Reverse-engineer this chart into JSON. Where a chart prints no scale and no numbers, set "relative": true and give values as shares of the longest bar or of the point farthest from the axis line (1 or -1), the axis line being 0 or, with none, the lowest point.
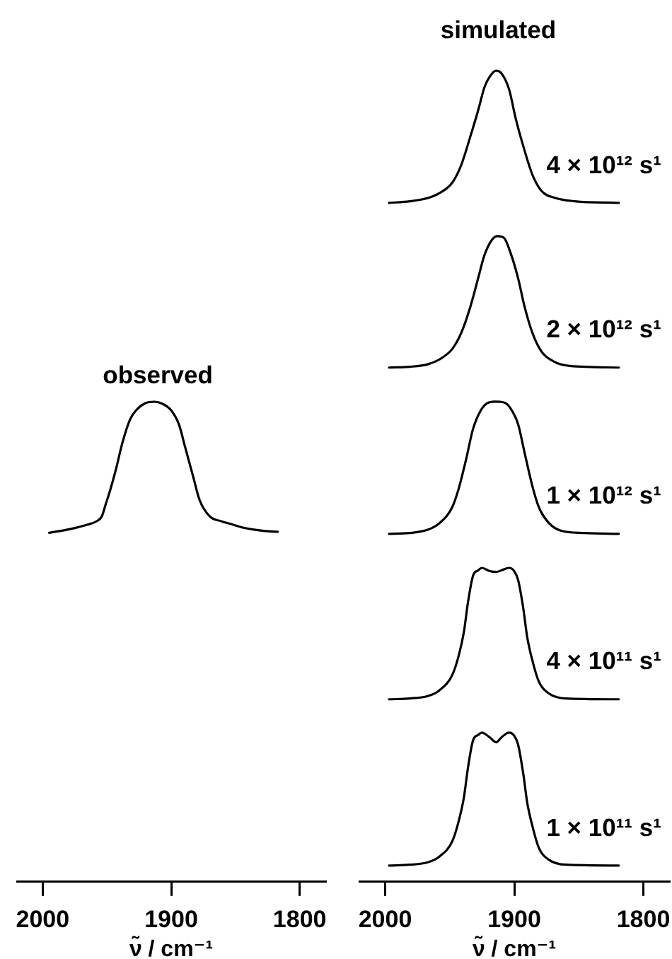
{
  "chart_data": [
    {
      "type": "line",
      "title": "observed",
      "xlabel": "ν̃ / cm⁻¹",
      "relative": true,
      "xlim": [
        2020,
        1780
      ],
      "xticks": [
        2000,
        1900,
        1800
      ],
      "x": [
        1995,
        1978,
        1965,
        1958,
        1954,
        1951,
        1947,
        1943,
        1938,
        1932,
        1927,
        1920,
        1913,
        1907,
        1900,
        1894,
        1889,
        1883,
        1878,
        1870,
        1861,
        1852,
        1843,
        1828,
        1817
      ],
      "series": [
        {
          "color": "#000000",
          "values": [
            0.727,
            0.735,
            0.744,
            0.751,
            0.761,
            0.786,
            0.82,
            0.859,
            0.914,
            0.963,
            0.983,
            0.997,
            1.0,
            0.996,
            0.982,
            0.953,
            0.904,
            0.845,
            0.796,
            0.761,
            0.751,
            0.744,
            0.737,
            0.731,
            0.729
          ]
        }
      ]
    },
    {
      "type": "line",
      "title": "simulated",
      "xlabel": "ν̃ / cm⁻¹",
      "relative": true,
      "xlim": [
        2020,
        1780
      ],
      "xticks": [
        2000,
        1900,
        1800
      ],
      "series": [
        {
          "name": "4 × 10¹² s¹",
          "color": "#000000",
          "x": [
            1997,
            1981,
            1967,
            1958,
            1948,
            1941,
            1934,
            1928,
            1923,
            1917,
            1914,
            1910,
            1904,
            1899,
            1893,
            1886,
            1879,
            1868,
            1853,
            1819
          ],
          "values": [
            0.837,
            0.839,
            0.843,
            0.849,
            0.862,
            0.884,
            0.919,
            0.951,
            0.98,
            0.997,
            1.0,
            0.997,
            0.977,
            0.942,
            0.907,
            0.872,
            0.852,
            0.843,
            0.839,
            0.837
          ]
        },
        {
          "name": "2 × 10¹² s¹",
          "color": "#000000",
          "x": [
            1997,
            1981,
            1967,
            1958,
            1948,
            1941,
            1934,
            1928,
            1923,
            1917,
            1913,
            1908,
            1903,
            1897,
            1892,
            1886,
            1879,
            1870,
            1857,
            1819
          ],
          "values": [
            0.634,
            0.635,
            0.638,
            0.644,
            0.657,
            0.677,
            0.709,
            0.744,
            0.773,
            0.792,
            0.796,
            0.794,
            0.776,
            0.744,
            0.709,
            0.677,
            0.654,
            0.642,
            0.636,
            0.634
          ]
        },
        {
          "name": "1 × 10¹² s¹",
          "color": "#000000",
          "x": [
            1997,
            1981,
            1967,
            1958,
            1948,
            1943,
            1937,
            1932,
            1926,
            1921,
            1915,
            1908,
            1903,
            1897,
            1892,
            1886,
            1881,
            1873,
            1864,
            1846,
            1819
          ],
          "values": [
            0.429,
            0.43,
            0.434,
            0.442,
            0.462,
            0.485,
            0.523,
            0.558,
            0.581,
            0.59,
            0.592,
            0.591,
            0.584,
            0.564,
            0.529,
            0.488,
            0.462,
            0.442,
            0.433,
            0.43,
            0.429
          ]
        },
        {
          "name": "4 × 10¹¹ s¹",
          "color": "#000000",
          "x": [
            1997,
            1981,
            1967,
            1958,
            1948,
            1943,
            1939,
            1936,
            1932,
            1928,
            1925,
            1919,
            1914,
            1910,
            1904,
            1900,
            1897,
            1893,
            1890,
            1886,
            1881,
            1873,
            1860,
            1819
          ],
          "values": [
            0.225,
            0.226,
            0.229,
            0.236,
            0.255,
            0.279,
            0.308,
            0.343,
            0.377,
            0.384,
            0.387,
            0.383,
            0.382,
            0.384,
            0.387,
            0.383,
            0.372,
            0.337,
            0.302,
            0.273,
            0.247,
            0.232,
            0.226,
            0.225
          ]
        },
        {
          "name": "1 × 10¹¹ s¹",
          "color": "#000000",
          "x": [
            1997,
            1981,
            1967,
            1958,
            1948,
            1943,
            1939,
            1936,
            1932,
            1928,
            1925,
            1919,
            1914,
            1910,
            1904,
            1900,
            1897,
            1893,
            1890,
            1886,
            1881,
            1873,
            1860,
            1819
          ],
          "values": [
            0.02,
            0.021,
            0.024,
            0.031,
            0.05,
            0.075,
            0.104,
            0.139,
            0.174,
            0.181,
            0.184,
            0.178,
            0.172,
            0.178,
            0.184,
            0.18,
            0.169,
            0.133,
            0.098,
            0.069,
            0.042,
            0.027,
            0.021,
            0.02
          ]
        }
      ]
    }
  ]
}
